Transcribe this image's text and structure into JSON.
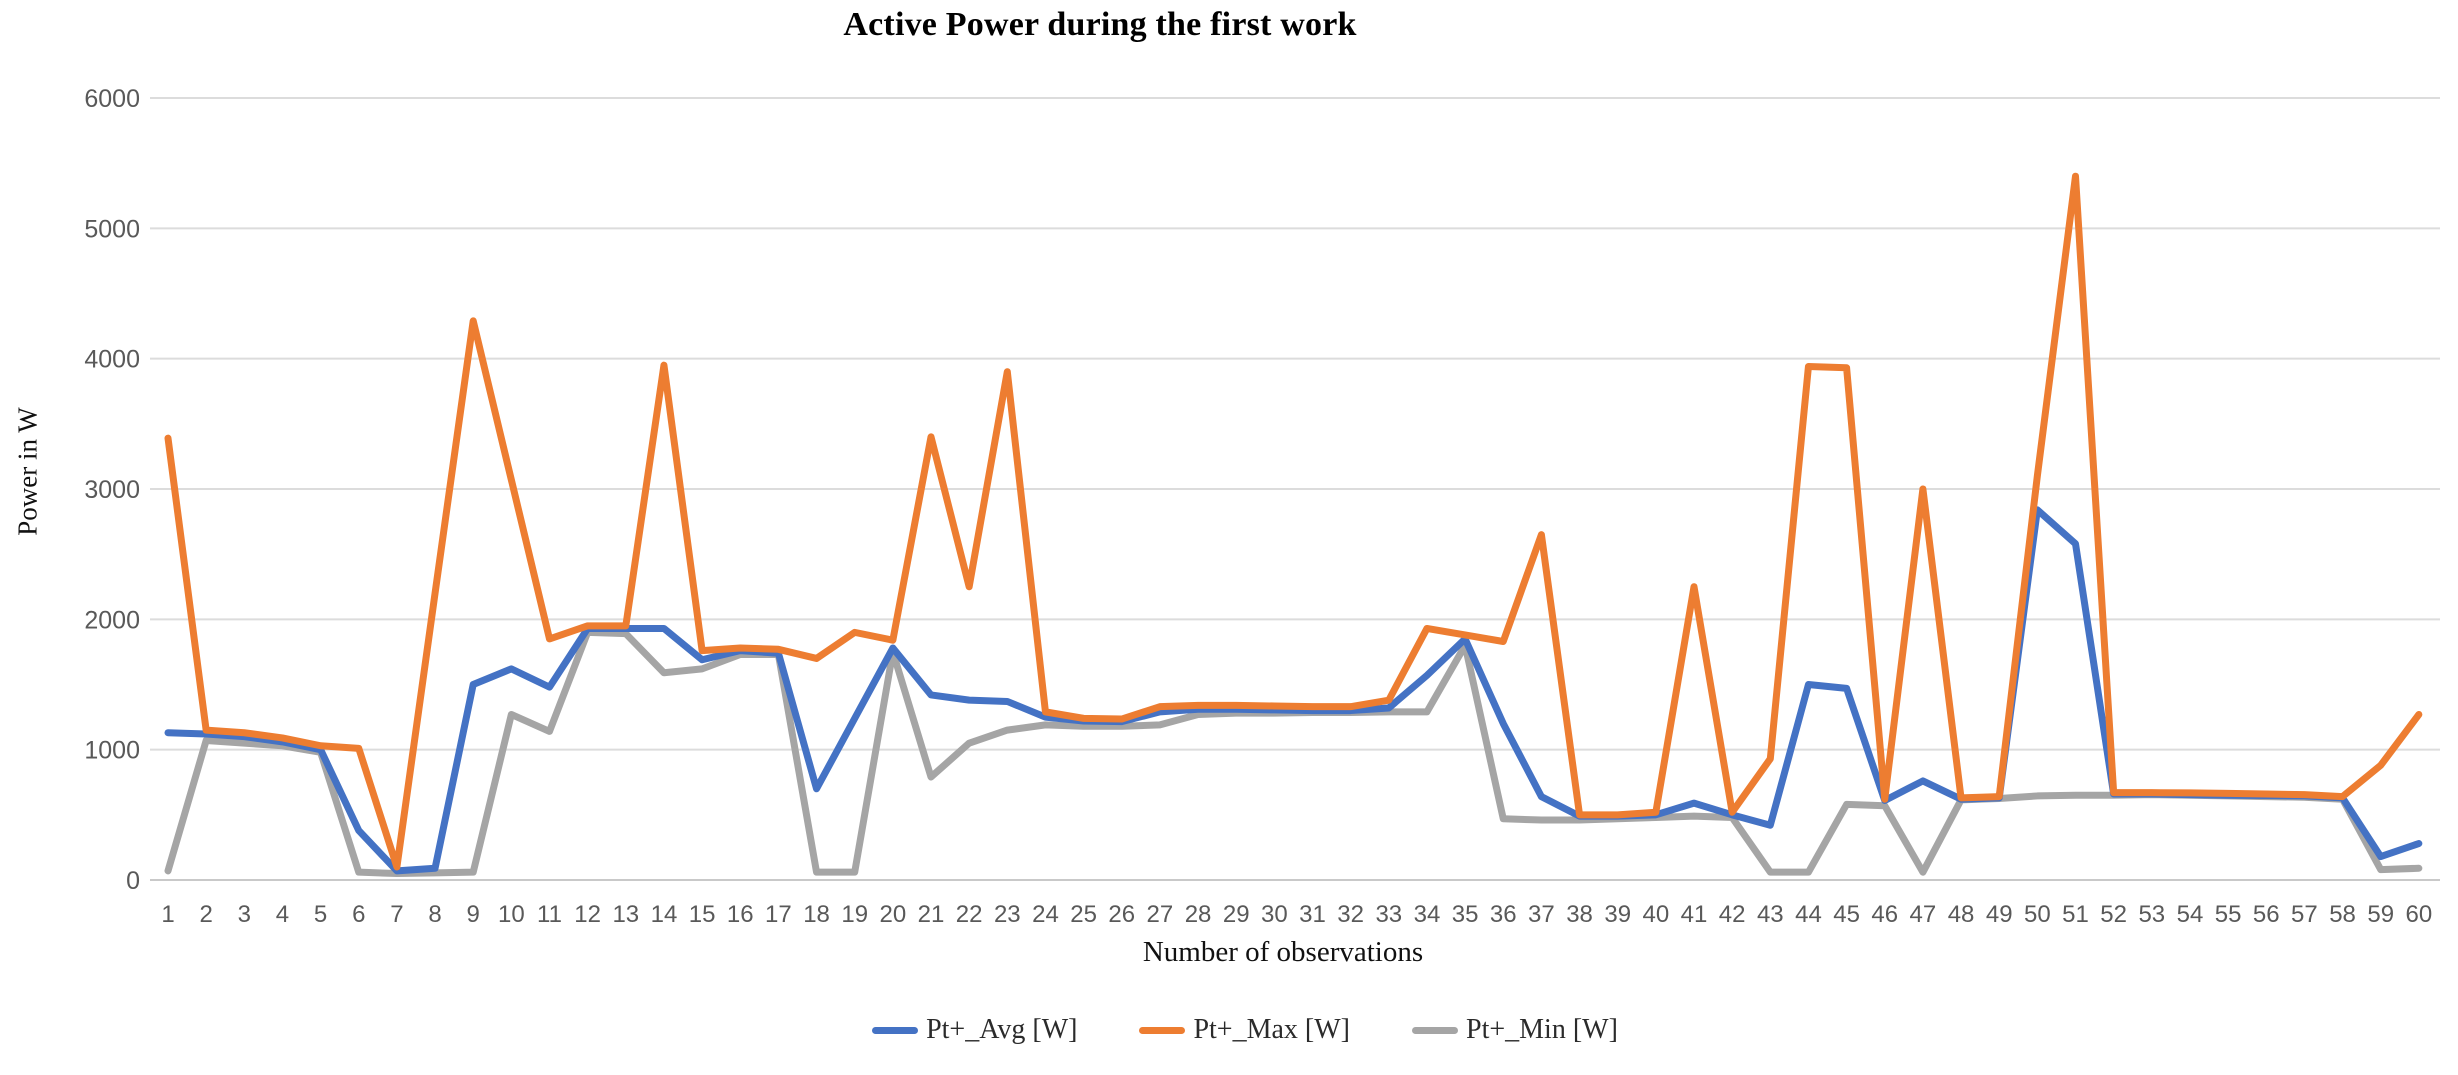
{
  "title": "Active Power during the first work",
  "chart_data": {
    "type": "line",
    "title": "Active Power during the first work",
    "xlabel": "Number of observations",
    "ylabel": "Power in W",
    "x": [
      1,
      2,
      3,
      4,
      5,
      6,
      7,
      8,
      9,
      10,
      11,
      12,
      13,
      14,
      15,
      16,
      17,
      18,
      19,
      20,
      21,
      22,
      23,
      24,
      25,
      26,
      27,
      28,
      29,
      30,
      31,
      32,
      33,
      34,
      35,
      36,
      37,
      38,
      39,
      40,
      41,
      42,
      43,
      44,
      45,
      46,
      47,
      48,
      49,
      50,
      51,
      52,
      53,
      54,
      55,
      56,
      57,
      58,
      59,
      60
    ],
    "ylim": [
      0,
      6000
    ],
    "yticks": [
      0,
      1000,
      2000,
      3000,
      4000,
      5000,
      6000
    ],
    "grid": "horizontal-only",
    "legend_position": "bottom",
    "series": [
      {
        "name": "Pt+_Avg [W]",
        "color": "#4472C4",
        "values": [
          1130,
          1120,
          1100,
          1060,
          1000,
          380,
          70,
          90,
          1500,
          1620,
          1480,
          1930,
          1930,
          1930,
          1690,
          1760,
          1740,
          700,
          1240,
          1780,
          1420,
          1380,
          1370,
          1250,
          1220,
          1215,
          1290,
          1310,
          1310,
          1305,
          1300,
          1300,
          1320,
          1570,
          1850,
          1200,
          640,
          490,
          490,
          500,
          590,
          500,
          420,
          1500,
          1470,
          610,
          760,
          620,
          630,
          2840,
          2580,
          660,
          660,
          655,
          650,
          648,
          645,
          630,
          180,
          280
        ]
      },
      {
        "name": "Pt+_Max [W]",
        "color": "#ED7D31",
        "values": [
          3390,
          1150,
          1130,
          1090,
          1030,
          1010,
          100,
          2200,
          4290,
          3070,
          1850,
          1950,
          1950,
          3950,
          1760,
          1780,
          1770,
          1700,
          1900,
          1840,
          3400,
          2250,
          3900,
          1290,
          1240,
          1235,
          1330,
          1340,
          1340,
          1335,
          1330,
          1330,
          1380,
          1930,
          1880,
          1830,
          2650,
          500,
          500,
          520,
          2250,
          520,
          930,
          3940,
          3930,
          620,
          3000,
          630,
          640,
          3100,
          5400,
          670,
          670,
          668,
          665,
          660,
          655,
          640,
          880,
          1270
        ]
      },
      {
        "name": "Pt+_Min [W]",
        "color": "#A5A5A5",
        "values": [
          70,
          1070,
          1050,
          1030,
          980,
          60,
          50,
          55,
          60,
          1270,
          1140,
          1900,
          1890,
          1590,
          1620,
          1730,
          1730,
          60,
          60,
          1750,
          790,
          1050,
          1150,
          1190,
          1180,
          1180,
          1190,
          1270,
          1280,
          1280,
          1285,
          1285,
          1290,
          1290,
          1800,
          470,
          460,
          460,
          470,
          480,
          490,
          480,
          60,
          60,
          580,
          570,
          60,
          615,
          625,
          645,
          650,
          650,
          655,
          650,
          645,
          640,
          635,
          620,
          80,
          90
        ]
      }
    ],
    "colors": {
      "gridline": "#DCDCDC",
      "axis_line": "#C9C9C9",
      "tick_label": "#595959"
    }
  }
}
